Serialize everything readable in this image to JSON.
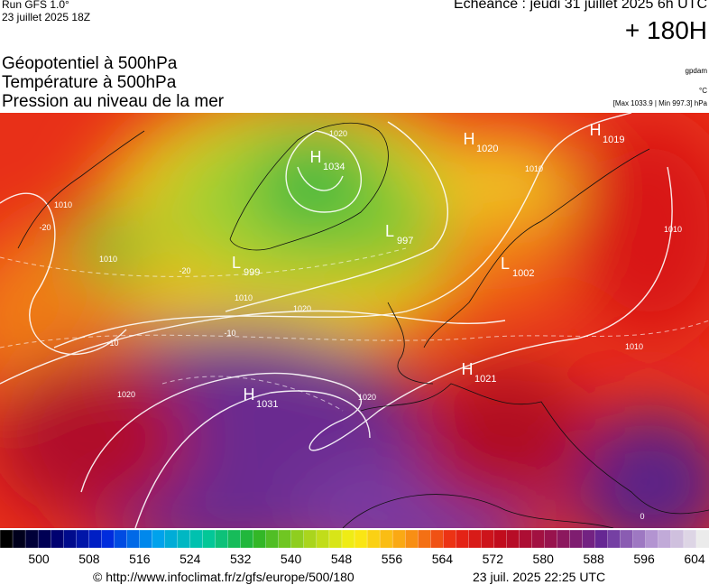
{
  "header": {
    "run": "Run GFS 1.0°",
    "run_date": "23 juillet 2025 18Z",
    "valid": "Echéance : jeudi 31 juillet 2025 6h UTC",
    "lead": "+ 180H",
    "fields": [
      "Géopotentiel à 500hPa",
      "Température à 500hPa",
      "Pression au niveau de la mer"
    ],
    "units": [
      "gpdam",
      "°C",
      "[Max 1033.9 | Min 997.3] hPa"
    ]
  },
  "centers": [
    {
      "type": "H",
      "value": "1020"
    },
    {
      "type": "H",
      "value": "1019"
    },
    {
      "type": "H",
      "value": "1034"
    },
    {
      "type": "L",
      "value": "997"
    },
    {
      "type": "L",
      "value": "999"
    },
    {
      "type": "L",
      "value": "1002"
    },
    {
      "type": "H",
      "value": "1021"
    },
    {
      "type": "H",
      "value": "1031"
    }
  ],
  "contour_labels": [
    "1010",
    "1010",
    "1010",
    "1020",
    "1010",
    "1010",
    "1010",
    "1020",
    "1020",
    "1020",
    "-20",
    "-20",
    "-10",
    "-10",
    "0"
  ],
  "colorbar": {
    "labels": [
      "500",
      "508",
      "516",
      "524",
      "532",
      "540",
      "548",
      "556",
      "564",
      "572",
      "580",
      "588",
      "596",
      "604"
    ]
  },
  "footer": {
    "url": "© http://www.infoclimat.fr/z/gfs/europe/500/180",
    "timestamp": "23 juil. 2025 22:25 UTC"
  }
}
